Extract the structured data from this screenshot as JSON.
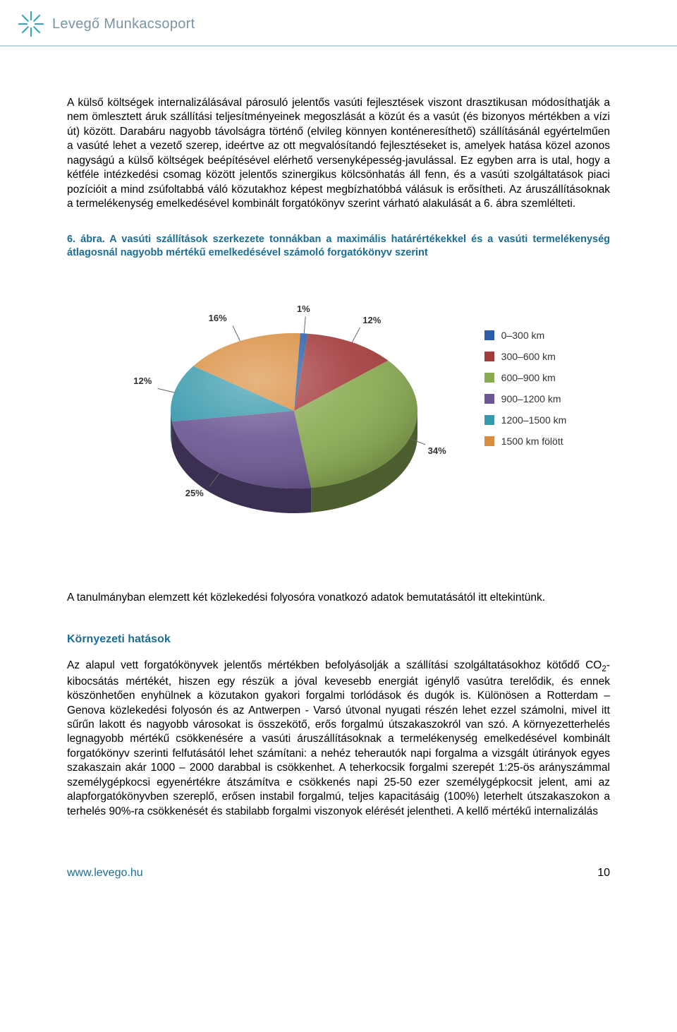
{
  "header": {
    "brand": "Levegő Munkacsoport"
  },
  "paragraphs": {
    "p1": "A külső költségek internalizálásával párosuló jelentős vasúti fejlesztések viszont drasztikusan módosíthatják a nem ömlesztett áruk szállítási teljesítményeinek megoszlását a közút és a vasút (és bizonyos mértékben a vízi út) között. Darabáru nagyobb távolságra történő (elvileg könnyen konténeresíthető) szállításánál egyértelműen a vasúté lehet a vezető szerep, ideértve az ott megvalósítandó fejlesztéseket is, amelyek hatása közel azonos nagyságú a külső költségek beépítésével elérhető versenyképesség-javulással. Ez egyben arra is utal, hogy a kétféle intézkedési csomag között jelentős szinergikus kölcsönhatás áll fenn, és a vasúti szolgáltatások piaci pozícióit a mind zsúfoltabbá váló közutakhoz képest megbízhatóbbá válásuk is erősítheti. Az áruszállításoknak a termelékenység emelkedésével kombinált forgatókönyv szerint várható alakulását a 6. ábra szemlélteti.",
    "figcaption": "6. ábra. A vasúti szállítások szerkezete tonnákban a maximális határértékekkel és a vasúti termelékenység átlagosnál nagyobb mértékű emelkedésével számoló forgatókönyv szerint",
    "p2": "A tanulmányban elemzett két közlekedési folyosóra vonatkozó adatok bemutatásától itt eltekintünk.",
    "heading": "Környezeti hatások",
    "p3_a": "Az alapul vett forgatókönyvek jelentős mértékben befolyásolják a szállítási szolgáltatásokhoz kötődő CO",
    "p3_sub": "2",
    "p3_b": "-kibocsátás mértékét, hiszen egy részük a jóval kevesebb energiát igénylő vasútra terelődik, és ennek köszönhetően enyhülnek a közutakon gyakori forgalmi torlódások és dugók is. Különösen a Rotterdam – Genova közlekedési folyosón és az Antwerpen - Varsó útvonal nyugati részén lehet ezzel számolni, mivel itt sűrűn lakott és nagyobb városokat is összekötő, erős forgalmú útszakaszokról van szó. A környezetterhelés legnagyobb mértékű csökkenésére a vasúti áruszállításoknak a termelékenység emelkedésével kombinált forgatókönyv szerinti felfutásától lehet számítani: a nehéz teherautók napi forgalma a vizsgált útirányok egyes szakaszain akár 1000 – 2000 darabbal is csökkenhet. A teherkocsik forgalmi szerepét 1:25-ös arányszámmal személygépkocsi egyenértékre átszámítva e csökkenés napi 25-50 ezer személygépkocsit jelent, ami az alapforgatókönyvben szereplő, erősen instabil forgalmú, teljes kapacitásáig (100%) leterhelt útszakaszokon a terhelés 90%-ra csökkenését és stabilabb forgalmi viszonyok elérését jelentheti. A kellő mértékű internalizálás"
  },
  "chart": {
    "type": "pie3d",
    "slices": [
      {
        "label": "0–300 km",
        "value": 1,
        "color": "#2b5ea7",
        "callout": "1%"
      },
      {
        "label": "300–600 km",
        "value": 12,
        "color": "#a33b3d",
        "callout": "12%"
      },
      {
        "label": "600–900 km",
        "value": 34,
        "color": "#8aab52",
        "callout": "34%"
      },
      {
        "label": "900–1200 km",
        "value": 25,
        "color": "#6b5793",
        "callout": "25%"
      },
      {
        "label": "1200–1500 km",
        "value": 12,
        "color": "#3799ac",
        "callout": "12%"
      },
      {
        "label": "1500 km fölött",
        "value": 16,
        "color": "#d98d3e",
        "callout": "16%"
      }
    ],
    "label_fontsize": 13,
    "label_color": "#323232",
    "background": "#ffffff",
    "gradient_highlight": "#ffffff",
    "gradient_highlight_opacity": 0.3
  },
  "footer": {
    "link": "www.levego.hu",
    "page": "10"
  },
  "logo": {
    "star_color": "#3ea2c1"
  }
}
